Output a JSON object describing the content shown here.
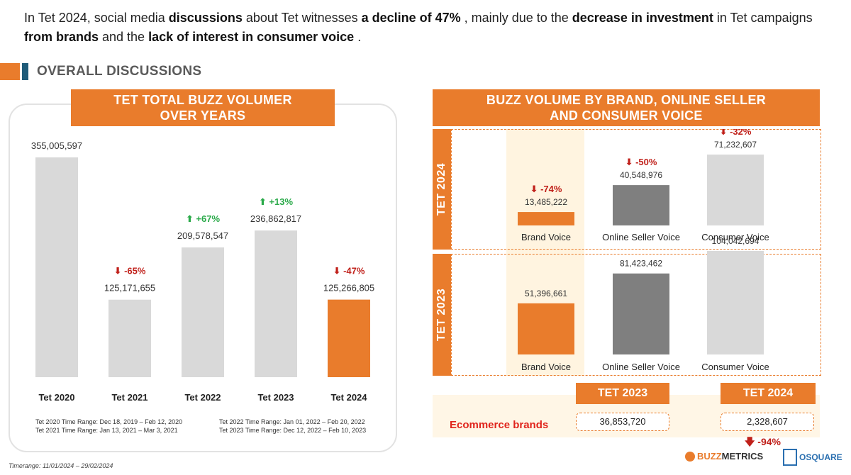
{
  "intro": {
    "p1": "In Tet 2024, social media ",
    "b1": "discussions",
    "p2": "  about Tet witnesses ",
    "b2": "a decline of 47%",
    "p3": " , mainly due to the ",
    "b3": "decrease in investment",
    "p4": "   in Tet campaigns ",
    "b4": "from brands",
    "p5": "  and the ",
    "b5": "lack of interest in consumer voice",
    "p6": "    ."
  },
  "section_title": "OVERALL DISCUSSIONS",
  "left_header": {
    "line1": "TET TOTAL BUZZ VOLUMER",
    "line2": "OVER YEARS"
  },
  "right_header": {
    "line1": "BUZZ VOLUME BY BRAND, ONLINE SELLER",
    "line2": "AND CONSUMER VOICE"
  },
  "notes": {
    "n1": "Tet 2020 Time Range: Dec 18, 2019 – Feb 12, 2020",
    "n2": "Tet 2021 Time Range: Jan 13, 2021 – Mar 3, 2021",
    "n3": "Tet 2022 Time Range: Jan 01, 2022 – Feb 20, 2022",
    "n4": "Tet 2023 Time Range: Dec 12, 2022 – Feb 10, 2023"
  },
  "timerange": "Timerange: 11/01/2024 – 29/02/2024",
  "colors": {
    "orange": "#E97C2C",
    "grey": "#D9D9D9",
    "dark_grey": "#7F7F7F",
    "red": "#C0201A",
    "green": "#2BAA4A",
    "blue": "#1F5C7A"
  },
  "chart_data": [
    {
      "type": "bar",
      "title": "TET TOTAL BUZZ VOLUMER OVER YEARS",
      "categories": [
        "Tet 2020",
        "Tet 2021",
        "Tet 2022",
        "Tet 2023",
        "Tet 2024"
      ],
      "values": [
        355005597,
        125171655,
        209578547,
        236862817,
        125266805
      ],
      "value_labels": [
        "355,005,597",
        "125,171,655",
        "209,578,547",
        "236,862,817",
        "125,266,805"
      ],
      "changes": [
        "",
        "-65%",
        "+67%",
        "+13%",
        "-47%"
      ],
      "change_dirs": [
        "",
        "down",
        "up",
        "up",
        "down"
      ],
      "bar_colors": [
        "#D9D9D9",
        "#D9D9D9",
        "#D9D9D9",
        "#D9D9D9",
        "#E97C2C"
      ],
      "ylim": [
        0,
        355005597
      ]
    },
    {
      "type": "bar",
      "title": "BUZZ VOLUME BY BRAND, ONLINE SELLER AND CONSUMER VOICE",
      "categories": [
        "Brand Voice",
        "Online Seller Voice",
        "Consumer Voice"
      ],
      "bar_colors": [
        "#E97C2C",
        "#7F7F7F",
        "#D9D9D9"
      ],
      "series": [
        {
          "name": "TET 2024",
          "values": [
            13485222,
            40548976,
            71232607
          ],
          "value_labels": [
            "13,485,222",
            "40,548,976",
            "71,232,607"
          ],
          "changes": [
            "-74%",
            "-50%",
            "-32%"
          ]
        },
        {
          "name": "TET 2023",
          "values": [
            51396661,
            81423462,
            104042694
          ],
          "value_labels": [
            "51,396,661",
            "81,423,462",
            "104,042,694"
          ],
          "changes": [
            "",
            "",
            ""
          ]
        }
      ]
    },
    {
      "type": "table",
      "row_label": "Ecommerce brands",
      "columns": [
        "TET 2023",
        "TET 2024"
      ],
      "values": [
        36853720,
        2328607
      ],
      "value_labels": [
        "36,853,720",
        "2,328,607"
      ],
      "change": "-94%"
    }
  ],
  "logos": {
    "buzz_a": "BUZZ",
    "buzz_b": "METRICS",
    "os": "OSQUARE"
  }
}
